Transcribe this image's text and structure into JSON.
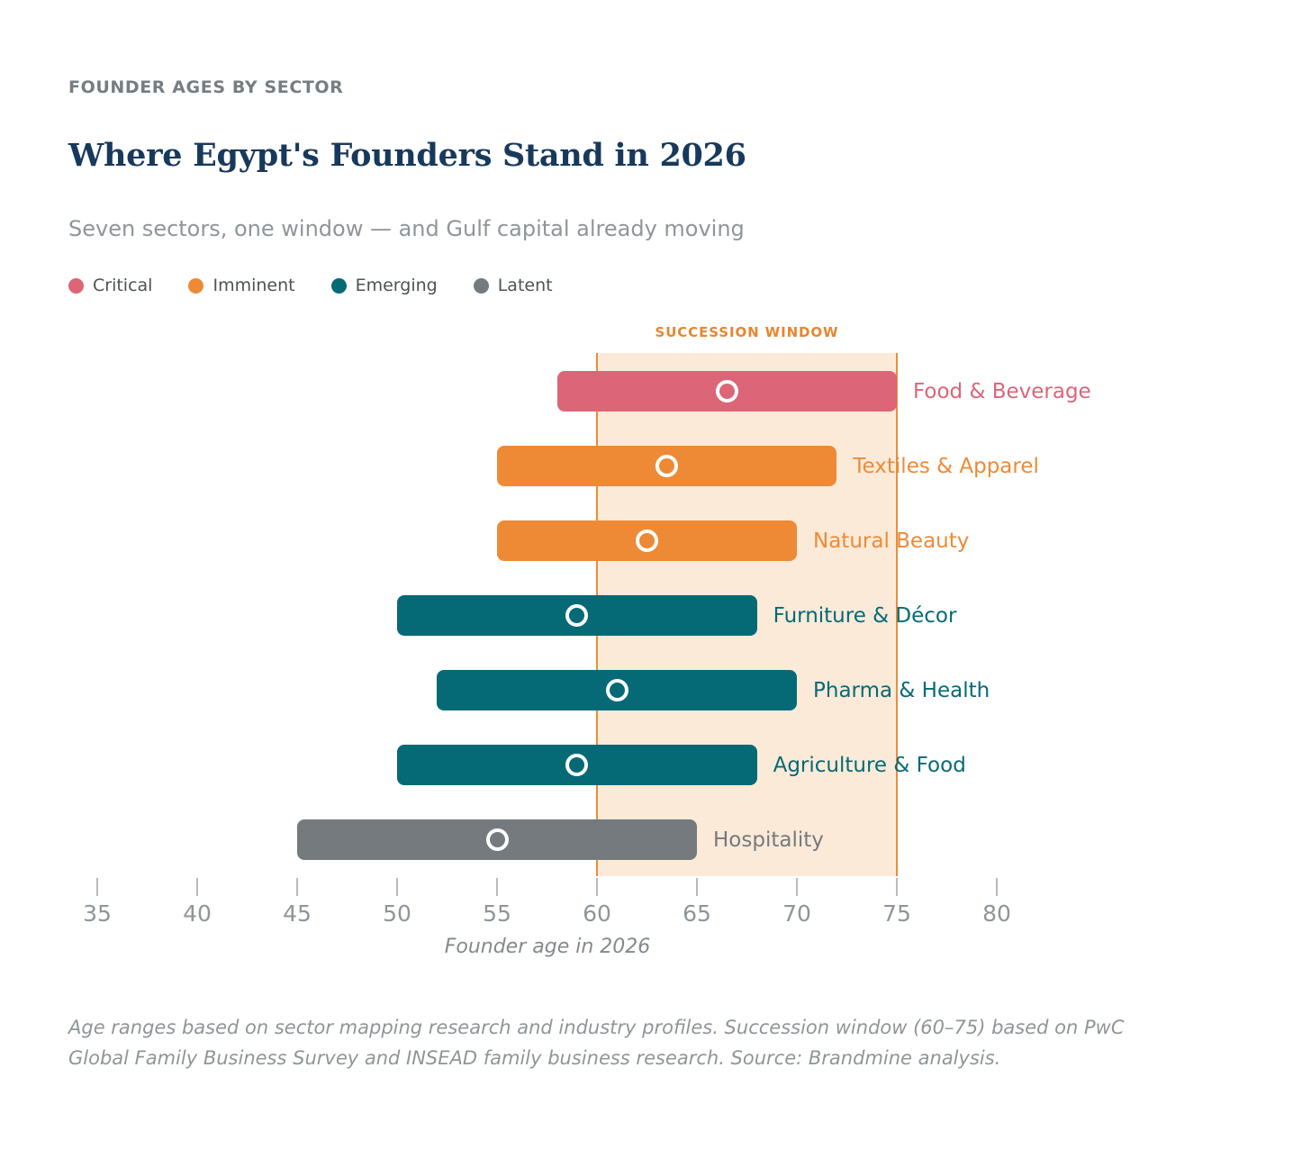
{
  "header": {
    "kicker": "FOUNDER AGES BY SECTOR",
    "title": "Where Egypt's Founders Stand in 2026",
    "subtitle": "Seven sectors, one window — and Gulf capital already moving"
  },
  "legend": [
    {
      "label": "Critical",
      "color": "#dc6577"
    },
    {
      "label": "Imminent",
      "color": "#ee8a35"
    },
    {
      "label": "Emerging",
      "color": "#056a75"
    },
    {
      "label": "Latent",
      "color": "#747a7d"
    }
  ],
  "chart_data": {
    "type": "bar",
    "orientation": "horizontal-range",
    "title": "Where Egypt's Founders Stand in 2026",
    "xlabel": "Founder age in 2026",
    "x_ticks": [
      35,
      40,
      45,
      50,
      55,
      60,
      65,
      70,
      75,
      80
    ],
    "xlim": [
      33,
      83
    ],
    "grid": false,
    "succession_window": {
      "label": "SUCCESSION WINDOW",
      "from": 60,
      "to": 75,
      "fill": "#fcead9",
      "border_color": "#eb8c3d",
      "label_color": "#e8862f"
    },
    "series": [
      {
        "sector": "Food & Beverage",
        "status": "Critical",
        "start": 58,
        "end": 75,
        "midpoint": 66.5,
        "color": "#dc6577"
      },
      {
        "sector": "Textiles & Apparel",
        "status": "Imminent",
        "start": 55,
        "end": 72,
        "midpoint": 63.5,
        "color": "#ee8a35"
      },
      {
        "sector": "Natural Beauty",
        "status": "Imminent",
        "start": 55,
        "end": 70,
        "midpoint": 62.5,
        "color": "#ee8a35"
      },
      {
        "sector": "Furniture & Décor",
        "status": "Emerging",
        "start": 50,
        "end": 68,
        "midpoint": 59,
        "color": "#056a75"
      },
      {
        "sector": "Pharma & Health",
        "status": "Emerging",
        "start": 52,
        "end": 70,
        "midpoint": 61,
        "color": "#056a75"
      },
      {
        "sector": "Agriculture & Food",
        "status": "Emerging",
        "start": 50,
        "end": 68,
        "midpoint": 59,
        "color": "#056a75"
      },
      {
        "sector": "Hospitality",
        "status": "Latent",
        "start": 45,
        "end": 65,
        "midpoint": 55,
        "color": "#747a7d"
      }
    ]
  },
  "footer": {
    "note": "Age ranges based on sector mapping research and industry profiles. Succession window (60–75) based on PwC Global Family Business Survey and INSEAD family business research. Source: Brandmine analysis."
  }
}
